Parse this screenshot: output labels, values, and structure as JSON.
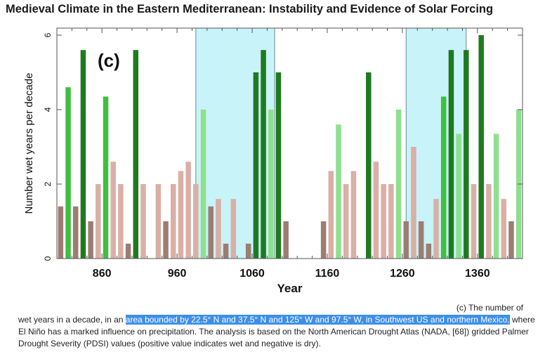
{
  "page": {
    "title": "Medieval Climate in the Eastern Mediterranean: Instability and Evidence of Solar Forcing"
  },
  "chart_data": {
    "type": "bar",
    "panel_label": "(c)",
    "xlabel": "Year",
    "ylabel": "Number wet years per decade",
    "xlim": [
      800,
      1420
    ],
    "ylim": [
      0,
      6
    ],
    "xticks": [
      860,
      960,
      1060,
      1160,
      1260,
      1360
    ],
    "yticks": [
      0,
      2,
      4,
      6
    ],
    "shaded_spans": [
      [
        985,
        1090
      ],
      [
        1265,
        1345
      ]
    ],
    "colors": {
      "dry_dark": "#9c7d72",
      "dry_light": "#d9afa6",
      "wet_dark": "#1f7a1f",
      "wet_mid": "#3fbf3f",
      "wet_light": "#8ee08e",
      "shade": "#c8f3f8"
    },
    "bars": [
      {
        "year": 805,
        "value": 1.4,
        "tone": "dry_dark"
      },
      {
        "year": 815,
        "value": 4.6,
        "tone": "wet_mid"
      },
      {
        "year": 825,
        "value": 1.4,
        "tone": "dry_dark"
      },
      {
        "year": 835,
        "value": 5.6,
        "tone": "wet_dark"
      },
      {
        "year": 845,
        "value": 1.0,
        "tone": "dry_dark"
      },
      {
        "year": 855,
        "value": 2.0,
        "tone": "dry_light"
      },
      {
        "year": 865,
        "value": 4.35,
        "tone": "wet_mid"
      },
      {
        "year": 875,
        "value": 2.6,
        "tone": "dry_light"
      },
      {
        "year": 885,
        "value": 2.0,
        "tone": "dry_light"
      },
      {
        "year": 895,
        "value": 0.4,
        "tone": "dry_dark"
      },
      {
        "year": 905,
        "value": 5.6,
        "tone": "wet_dark"
      },
      {
        "year": 915,
        "value": 2.0,
        "tone": "dry_light"
      },
      {
        "year": 935,
        "value": 2.0,
        "tone": "dry_light"
      },
      {
        "year": 945,
        "value": 1.0,
        "tone": "dry_dark"
      },
      {
        "year": 955,
        "value": 2.0,
        "tone": "dry_light"
      },
      {
        "year": 965,
        "value": 2.35,
        "tone": "dry_light"
      },
      {
        "year": 975,
        "value": 2.6,
        "tone": "dry_light"
      },
      {
        "year": 985,
        "value": 2.0,
        "tone": "dry_light"
      },
      {
        "year": 995,
        "value": 4.0,
        "tone": "wet_light"
      },
      {
        "year": 1005,
        "value": 1.4,
        "tone": "dry_dark"
      },
      {
        "year": 1015,
        "value": 1.6,
        "tone": "dry_light"
      },
      {
        "year": 1025,
        "value": 0.4,
        "tone": "dry_dark"
      },
      {
        "year": 1035,
        "value": 1.6,
        "tone": "dry_light"
      },
      {
        "year": 1055,
        "value": 0.4,
        "tone": "dry_dark"
      },
      {
        "year": 1065,
        "value": 5.0,
        "tone": "wet_dark"
      },
      {
        "year": 1075,
        "value": 5.6,
        "tone": "wet_dark"
      },
      {
        "year": 1085,
        "value": 4.0,
        "tone": "wet_light"
      },
      {
        "year": 1095,
        "value": 5.0,
        "tone": "wet_dark"
      },
      {
        "year": 1105,
        "value": 1.0,
        "tone": "dry_dark"
      },
      {
        "year": 1155,
        "value": 1.0,
        "tone": "dry_dark"
      },
      {
        "year": 1165,
        "value": 2.35,
        "tone": "dry_light"
      },
      {
        "year": 1175,
        "value": 3.6,
        "tone": "wet_light"
      },
      {
        "year": 1185,
        "value": 2.0,
        "tone": "dry_light"
      },
      {
        "year": 1195,
        "value": 2.35,
        "tone": "dry_light"
      },
      {
        "year": 1215,
        "value": 5.0,
        "tone": "wet_dark"
      },
      {
        "year": 1225,
        "value": 2.6,
        "tone": "dry_light"
      },
      {
        "year": 1235,
        "value": 2.0,
        "tone": "dry_light"
      },
      {
        "year": 1245,
        "value": 2.0,
        "tone": "dry_light"
      },
      {
        "year": 1255,
        "value": 4.0,
        "tone": "wet_light"
      },
      {
        "year": 1265,
        "value": 1.0,
        "tone": "dry_dark"
      },
      {
        "year": 1275,
        "value": 3.0,
        "tone": "dry_light"
      },
      {
        "year": 1285,
        "value": 1.0,
        "tone": "dry_dark"
      },
      {
        "year": 1295,
        "value": 0.4,
        "tone": "dry_dark"
      },
      {
        "year": 1305,
        "value": 1.6,
        "tone": "dry_light"
      },
      {
        "year": 1315,
        "value": 4.35,
        "tone": "wet_mid"
      },
      {
        "year": 1325,
        "value": 5.6,
        "tone": "wet_dark"
      },
      {
        "year": 1335,
        "value": 3.35,
        "tone": "wet_light"
      },
      {
        "year": 1345,
        "value": 5.6,
        "tone": "wet_dark"
      },
      {
        "year": 1355,
        "value": 2.0,
        "tone": "dry_light"
      },
      {
        "year": 1365,
        "value": 6.0,
        "tone": "wet_dark"
      },
      {
        "year": 1375,
        "value": 2.0,
        "tone": "dry_light"
      },
      {
        "year": 1385,
        "value": 3.35,
        "tone": "wet_light"
      },
      {
        "year": 1395,
        "value": 1.6,
        "tone": "dry_light"
      },
      {
        "year": 1405,
        "value": 1.0,
        "tone": "dry_dark"
      },
      {
        "year": 1415,
        "value": 4.0,
        "tone": "wet_light"
      }
    ]
  },
  "caption": {
    "line1": "(c) The number of",
    "before": "wet years in a decade, in an ",
    "highlight": "area bounded by 22.5° N and 37.5° N and 125° W and 97.5° W, in Southwest US and northern Mexico,",
    "after": " where El Niño has a marked influence on precipitation. The analysis is based on the North American Drought Atlas (NADA, [68]) gridded Palmer Drought Severity (PDSI) values (positive value indicates wet and negative is dry)."
  }
}
